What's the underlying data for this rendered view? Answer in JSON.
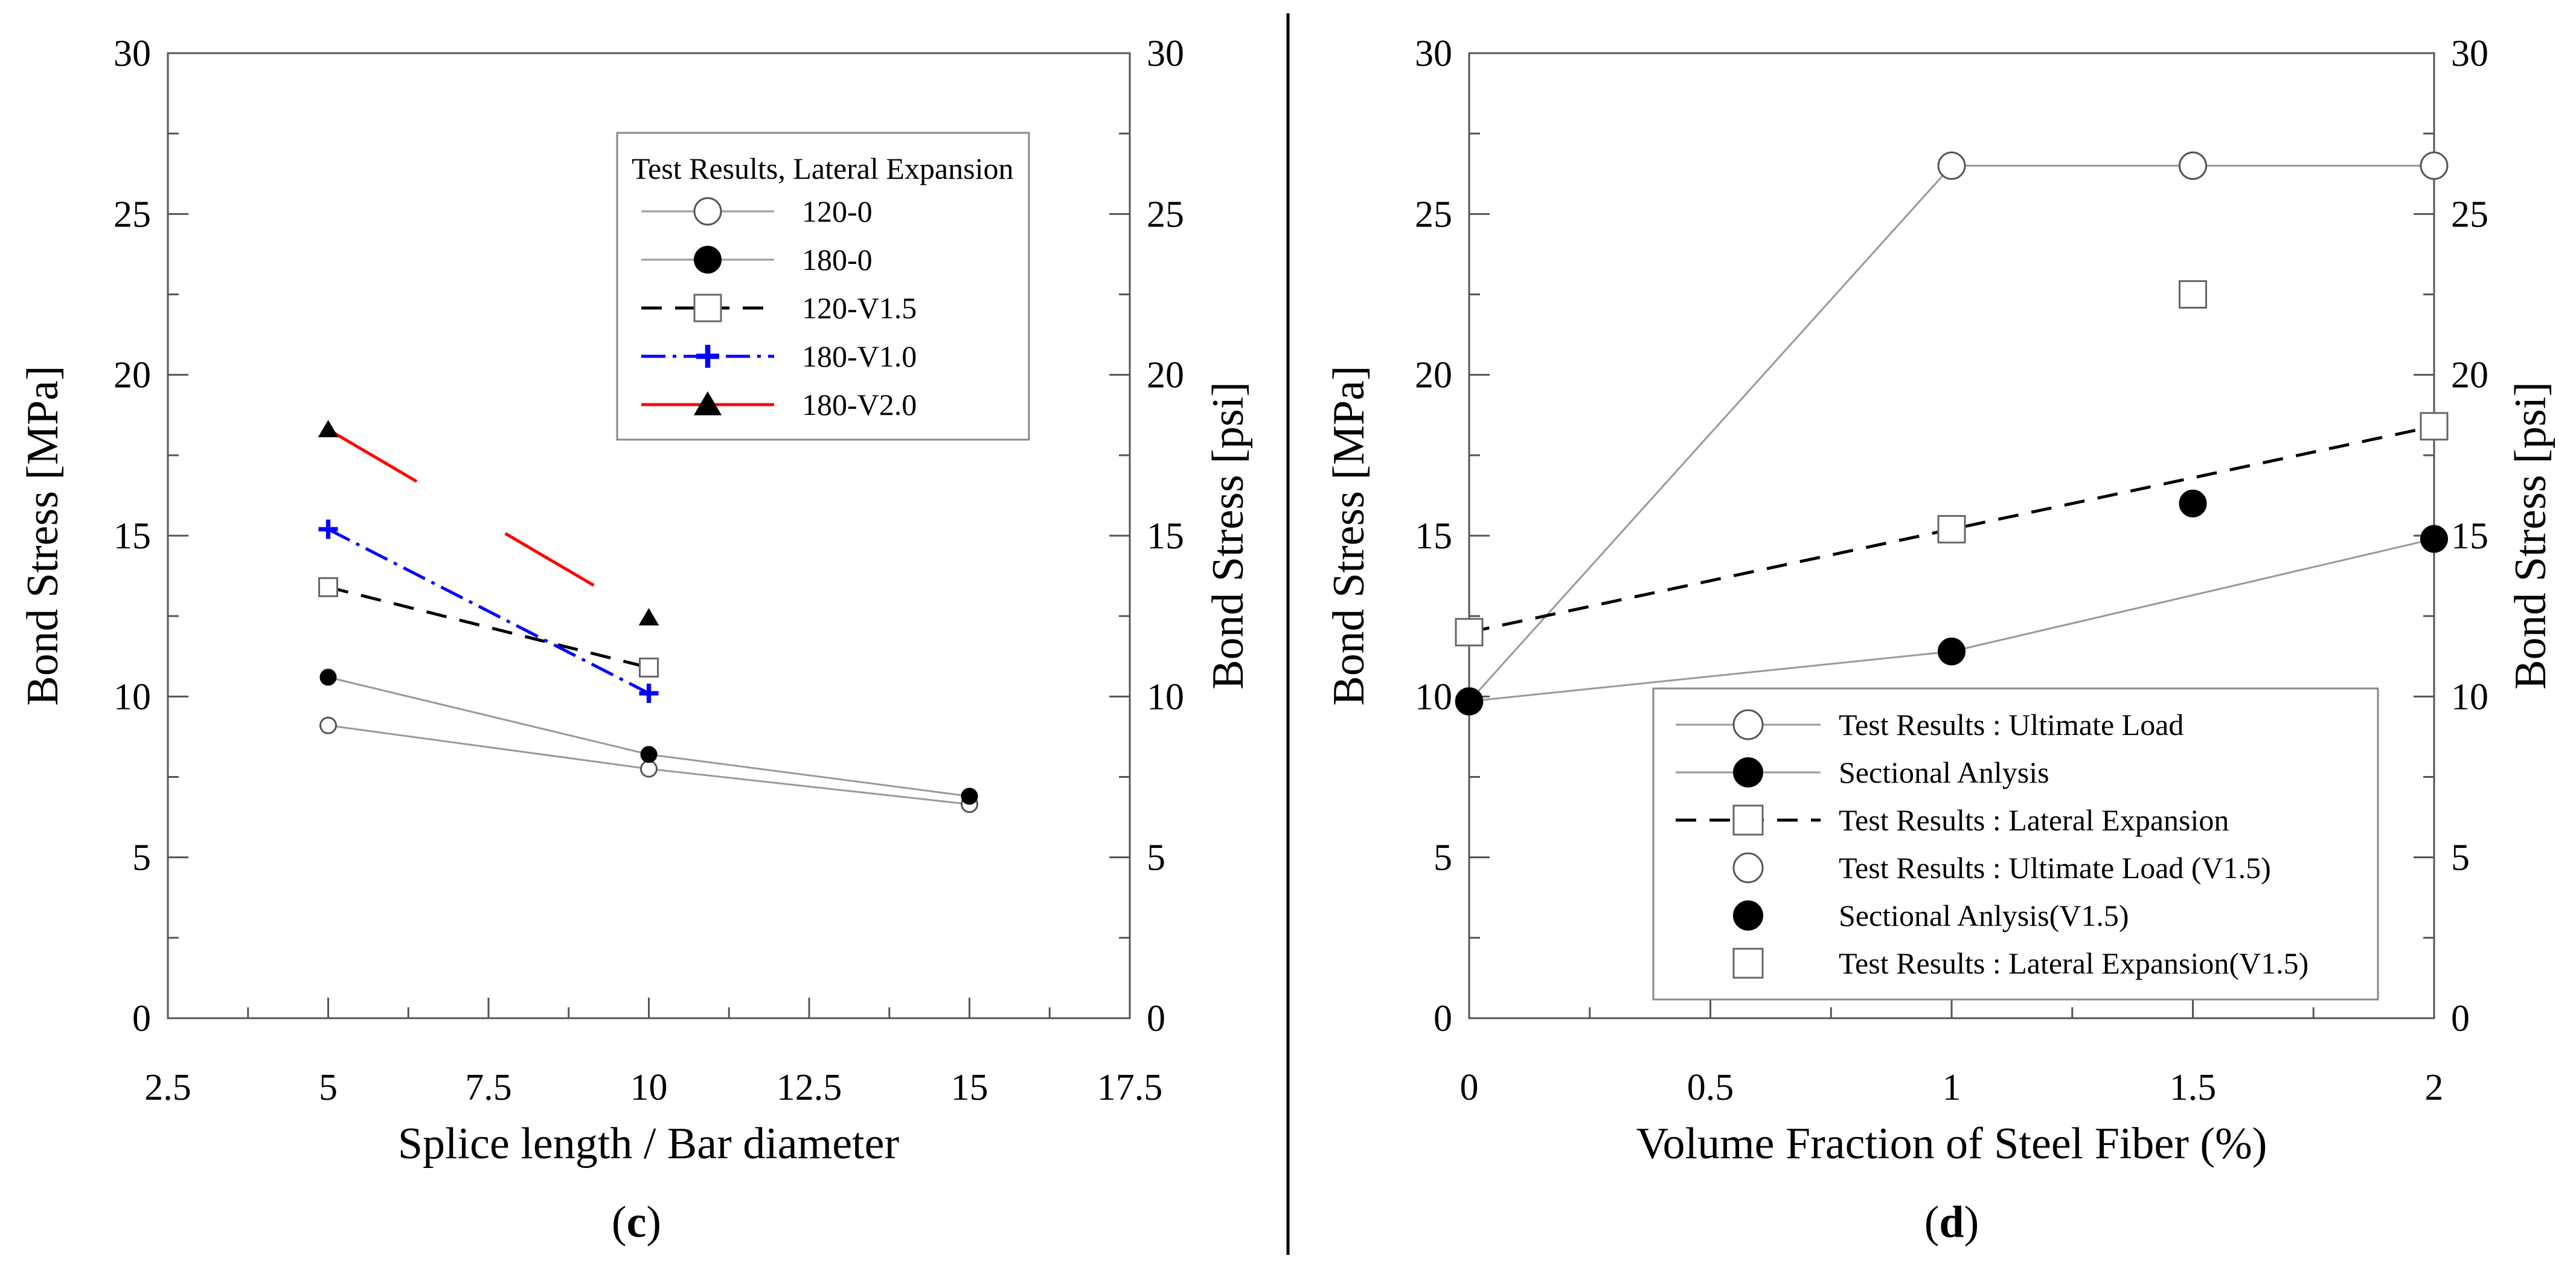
{
  "colors": {
    "black": "#000000",
    "gray": "#999999",
    "blue": "#0000ff",
    "red": "#ff0000",
    "white": "#ffffff"
  },
  "panel_labels": {
    "c_open": "(",
    "c_letter": "c",
    "c_close": ")",
    "d_open": "(",
    "d_letter": "d",
    "d_close": ")"
  },
  "chart_data": [
    {
      "id": "c",
      "type": "line",
      "xlabel": "Splice length / Bar diameter",
      "ylabel_left": "Bond Stress [MPa]",
      "ylabel_right": "Bond Stress [psi]",
      "xlim": [
        2.5,
        17.5
      ],
      "ylim": [
        0,
        30
      ],
      "x_ticks": [
        2.5,
        5,
        7.5,
        10,
        12.5,
        15,
        17.5
      ],
      "x_tick_labels": [
        "2.5",
        "5",
        "7.5",
        "10",
        "12.5",
        "15",
        "17.5"
      ],
      "y_ticks": [
        0,
        5,
        10,
        15,
        20,
        25,
        30
      ],
      "y_tick_labels": [
        "0",
        "5",
        "10",
        "15",
        "20",
        "25",
        "30"
      ],
      "right_y_tick_labels": [
        "0",
        "5",
        "10",
        "15",
        "20",
        "25",
        "30"
      ],
      "legend_title": "Test Results, Lateral Expansion",
      "legend_position": "top-right",
      "series": [
        {
          "name": "120-0",
          "color": "#999999",
          "line": "solid",
          "marker": "open-circle",
          "points": [
            [
              5,
              9.1
            ],
            [
              10,
              7.75
            ],
            [
              15,
              6.65
            ]
          ]
        },
        {
          "name": "180-0",
          "color": "#999999",
          "line": "solid",
          "marker": "filled-circle",
          "points": [
            [
              5,
              10.6
            ],
            [
              10,
              8.2
            ],
            [
              15,
              6.9
            ]
          ]
        },
        {
          "name": "120-V1.5",
          "color": "#000000",
          "line": "dashed",
          "marker": "open-square",
          "points": [
            [
              5,
              13.4
            ],
            [
              10,
              10.9
            ]
          ]
        },
        {
          "name": "180-V1.0",
          "color": "#0000ff",
          "line": "dash-dot",
          "marker": "plus",
          "points": [
            [
              5,
              15.2
            ],
            [
              10,
              10.1
            ]
          ]
        },
        {
          "name": "180-V2.0",
          "color": "#ff0000",
          "line": "long-dash",
          "marker": "filled-triangle",
          "points": [
            [
              5,
              18.3
            ],
            [
              10,
              12.45
            ]
          ]
        }
      ]
    },
    {
      "id": "d",
      "type": "line",
      "xlabel": "Volume Fraction of Steel Fiber (%)",
      "ylabel_left": "Bond Stress [MPa]",
      "ylabel_right": "Bond Stress [psi]",
      "xlim": [
        0,
        2
      ],
      "ylim": [
        0,
        30
      ],
      "x_ticks": [
        0,
        0.5,
        1,
        1.5,
        2
      ],
      "x_tick_labels": [
        "0",
        "0.5",
        "1",
        "1.5",
        "2"
      ],
      "y_ticks": [
        0,
        5,
        10,
        15,
        20,
        25,
        30
      ],
      "y_tick_labels": [
        "0",
        "5",
        "10",
        "15",
        "20",
        "25",
        "30"
      ],
      "right_y_tick_labels": [
        "0",
        "5",
        "10",
        "15",
        "20",
        "25",
        "30"
      ],
      "legend_position": "bottom-right",
      "series": [
        {
          "name": "Test Results : Ultimate Load",
          "color": "#999999",
          "line": "solid",
          "marker": "open-circle",
          "points": [
            [
              0,
              9.85
            ],
            [
              1,
              26.5
            ],
            [
              1.5,
              26.5
            ],
            [
              2,
              26.5
            ]
          ]
        },
        {
          "name": "Sectional Anlysis",
          "color": "#999999",
          "line": "solid",
          "marker": "filled-circle",
          "points": [
            [
              0,
              9.85
            ],
            [
              1,
              11.4
            ],
            [
              2,
              14.9
            ]
          ]
        },
        {
          "name": "Test Results : Lateral Expansion",
          "color": "#000000",
          "line": "dashed",
          "marker": "open-square",
          "points": [
            [
              0,
              12.0
            ],
            [
              1,
              15.2
            ],
            [
              2,
              18.4
            ]
          ]
        },
        {
          "name": "Test Results : Ultimate Load (V1.5)",
          "color": "#999999",
          "line": "none",
          "marker": "open-circle",
          "points": [
            [
              1.5,
              26.5
            ]
          ]
        },
        {
          "name": "Sectional Anlysis(V1.5)",
          "color": "#000000",
          "line": "none",
          "marker": "filled-circle",
          "points": [
            [
              1.5,
              16.0
            ]
          ]
        },
        {
          "name": "Test Results : Lateral Expansion(V1.5)",
          "color": "#999999",
          "line": "none",
          "marker": "open-square",
          "points": [
            [
              1.5,
              22.5
            ]
          ]
        }
      ]
    }
  ]
}
